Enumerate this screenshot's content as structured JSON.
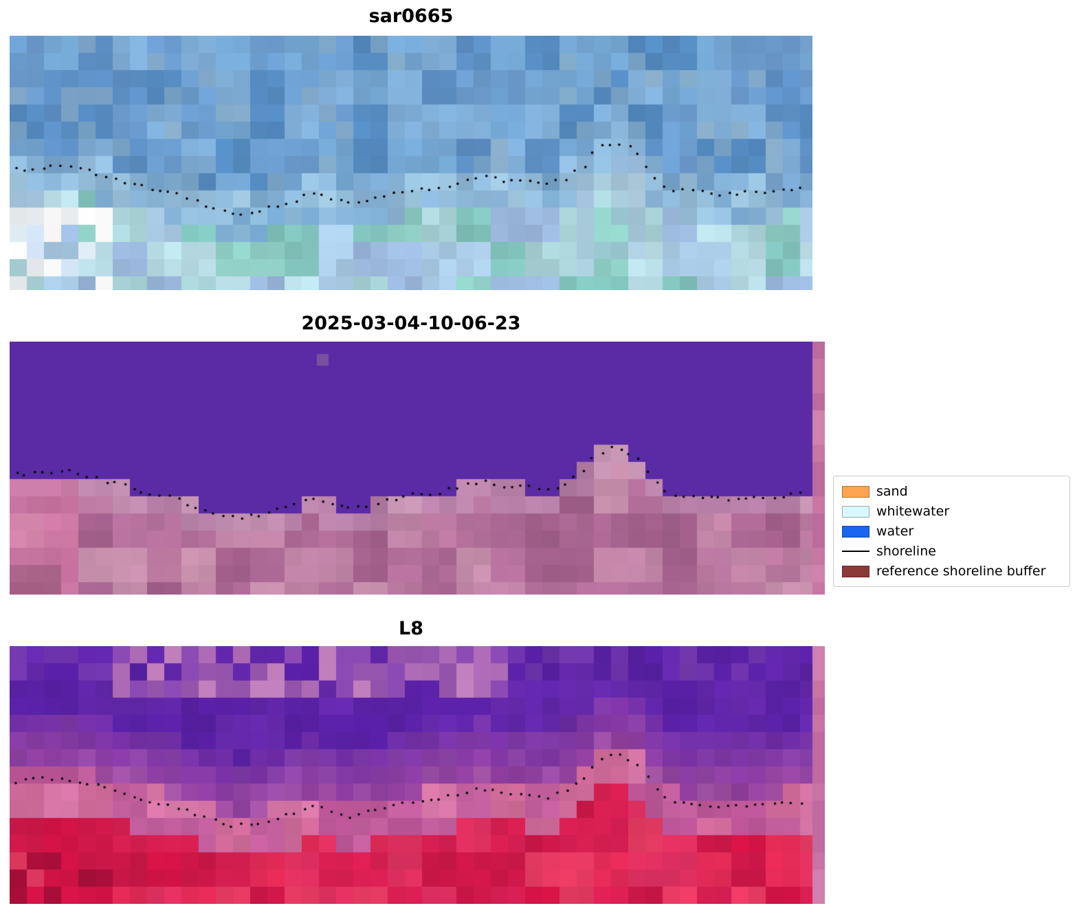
{
  "chart_data": {
    "type": "heatmap",
    "description": "Shoreline detection figure with three satellite image panels and a classification legend",
    "panels": [
      {
        "title": "sar0665"
      },
      {
        "title": "2025-03-04-10-06-23"
      },
      {
        "title": "L8"
      }
    ],
    "legend": {
      "position": "right",
      "items": [
        {
          "label": "sand",
          "kind": "patch",
          "color": "#ffa54f"
        },
        {
          "label": "whitewater",
          "kind": "patch",
          "color": "#d9f7ff"
        },
        {
          "label": "water",
          "kind": "patch",
          "color": "#1a66f0"
        },
        {
          "label": "shoreline",
          "kind": "line",
          "color": "#000000"
        },
        {
          "label": "reference shoreline buffer",
          "kind": "patch",
          "color": "#8b3a3a"
        }
      ]
    },
    "shoreline": {
      "color": "#000000",
      "dot_count": 88,
      "points": [
        [
          0.007,
          0.527
        ],
        [
          0.04,
          0.516
        ],
        [
          0.075,
          0.516
        ],
        [
          0.108,
          0.541
        ],
        [
          0.138,
          0.568
        ],
        [
          0.168,
          0.595
        ],
        [
          0.202,
          0.616
        ],
        [
          0.236,
          0.657
        ],
        [
          0.262,
          0.689
        ],
        [
          0.292,
          0.697
        ],
        [
          0.322,
          0.678
        ],
        [
          0.348,
          0.657
        ],
        [
          0.373,
          0.624
        ],
        [
          0.399,
          0.635
        ],
        [
          0.425,
          0.662
        ],
        [
          0.45,
          0.643
        ],
        [
          0.476,
          0.624
        ],
        [
          0.502,
          0.608
        ],
        [
          0.536,
          0.595
        ],
        [
          0.57,
          0.568
        ],
        [
          0.587,
          0.549
        ],
        [
          0.613,
          0.57
        ],
        [
          0.639,
          0.57
        ],
        [
          0.664,
          0.589
        ],
        [
          0.69,
          0.568
        ],
        [
          0.716,
          0.508
        ],
        [
          0.733,
          0.441
        ],
        [
          0.75,
          0.422
        ],
        [
          0.767,
          0.432
        ],
        [
          0.784,
          0.468
        ],
        [
          0.797,
          0.522
        ],
        [
          0.81,
          0.576
        ],
        [
          0.831,
          0.608
        ],
        [
          0.853,
          0.616
        ],
        [
          0.887,
          0.622
        ],
        [
          0.921,
          0.616
        ],
        [
          0.955,
          0.611
        ],
        [
          0.985,
          0.603
        ]
      ]
    }
  },
  "style": {
    "background": "#ffffff",
    "seeds": [
      3,
      11,
      27
    ],
    "panel_palettes": [
      {
        "type": "sar",
        "water_colors": [
          "#5d8fc4",
          "#6c9cce",
          "#7fadd6",
          "#548abf",
          "#74a6d2"
        ],
        "shallow_colors": [
          "#a3c9e0",
          "#b2d6e4",
          "#c2e2ea",
          "#92bcdb"
        ],
        "land_colors": [
          "#a9d3d8",
          "#90cfc6",
          "#b9dde6",
          "#9cb9dd",
          "#82c5be",
          "#aacbe6"
        ],
        "bright_colors": [
          "#f3f6f9",
          "#ffffff",
          "#dde9f1",
          "#c9d9ea"
        ]
      },
      {
        "type": "classified",
        "water_color": "#5a2ba4",
        "land_colors": [
          "#b3709b",
          "#c184a7",
          "#a15f8a",
          "#ba79a0",
          "#c78fac",
          "#ab6894"
        ],
        "beach_color": "#c9a2c6",
        "left_patch": "#d878a5",
        "strip_colors": [
          "#c877a5",
          "#bc6b9d",
          "#cf83ab"
        ],
        "anomaly_color": "#7b4fa0",
        "anomaly_x": 0.383,
        "anomaly_y": 0.05
      },
      {
        "type": "l8",
        "water_colors": [
          "#5a21a6",
          "#6126aa",
          "#571fa2",
          "#6629ad"
        ],
        "top_band_colors": [
          "#9a57b2",
          "#b06cb8",
          "#c07fbc",
          "#8748ae"
        ],
        "beach_colors": [
          "#c35f9d",
          "#cf6a99",
          "#ba5596",
          "#d877a8"
        ],
        "land_colors": [
          "#d81f52",
          "#e22a56",
          "#cb1748",
          "#df3060",
          "#d21345",
          "#e63a62"
        ],
        "dark_land": "#a50e38",
        "strip_colors": [
          "#c873a6",
          "#bf6aa0",
          "#d07fae"
        ]
      }
    ]
  }
}
